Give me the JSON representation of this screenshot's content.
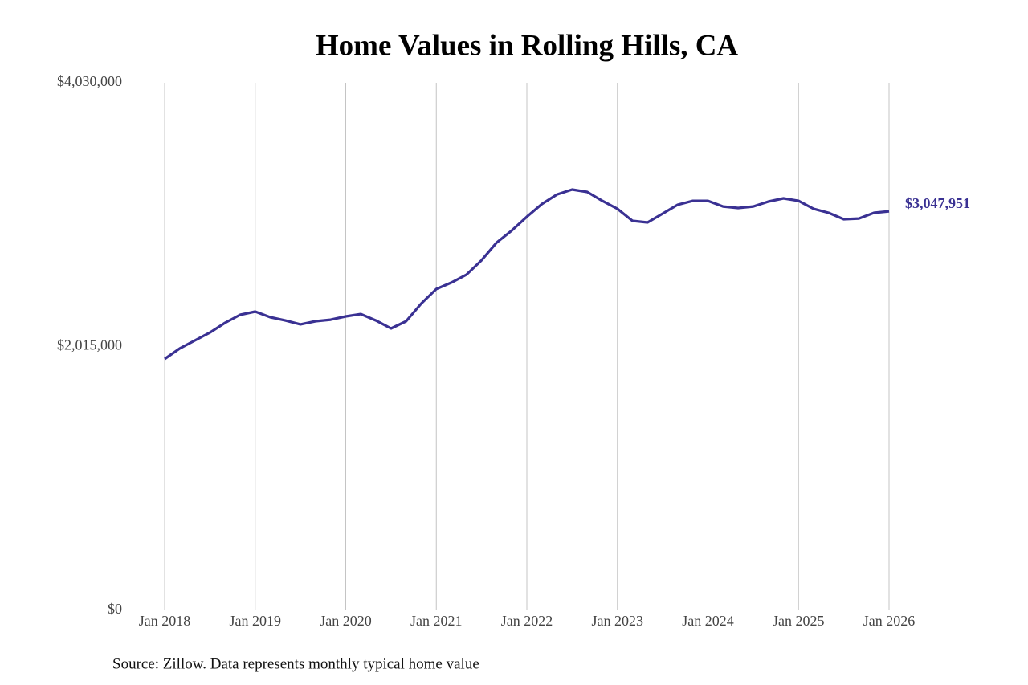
{
  "chart_data": {
    "type": "line",
    "title": "Home Values in Rolling Hills, CA",
    "source": "Source: Zillow. Data represents monthly typical home value",
    "x": [
      "2018-01",
      "2018-03",
      "2018-05",
      "2018-07",
      "2018-09",
      "2018-11",
      "2019-01",
      "2019-03",
      "2019-05",
      "2019-07",
      "2019-09",
      "2019-11",
      "2020-01",
      "2020-03",
      "2020-05",
      "2020-07",
      "2020-09",
      "2020-11",
      "2021-01",
      "2021-03",
      "2021-05",
      "2021-07",
      "2021-09",
      "2021-11",
      "2022-01",
      "2022-03",
      "2022-05",
      "2022-07",
      "2022-09",
      "2022-11",
      "2023-01",
      "2023-03",
      "2023-05",
      "2023-07",
      "2023-09",
      "2023-11",
      "2024-01",
      "2024-03",
      "2024-05",
      "2024-07",
      "2024-09",
      "2024-11",
      "2025-01",
      "2025-03",
      "2025-05",
      "2025-07",
      "2025-09",
      "2025-11",
      "2026-01"
    ],
    "series": [
      {
        "name": "Home value",
        "color": "#3a3193",
        "values": [
          1920000,
          2000000,
          2061000,
          2122000,
          2196000,
          2257000,
          2282000,
          2239000,
          2214000,
          2184000,
          2208000,
          2220000,
          2245000,
          2263000,
          2214000,
          2153000,
          2208000,
          2343000,
          2454000,
          2503000,
          2564000,
          2674000,
          2809000,
          2901000,
          3006000,
          3104000,
          3177000,
          3214000,
          3196000,
          3128000,
          3067000,
          2975000,
          2963000,
          3030000,
          3098000,
          3128000,
          3128000,
          3085000,
          3073000,
          3085000,
          3122000,
          3147000,
          3128000,
          3067000,
          3036000,
          2987000,
          2993000,
          3036000,
          3047951
        ],
        "value_labels": [
          null,
          null,
          null,
          null,
          null,
          null,
          null,
          null,
          null,
          null,
          null,
          null,
          null,
          null,
          null,
          null,
          null,
          null,
          null,
          null,
          null,
          null,
          null,
          null,
          null,
          null,
          null,
          null,
          null,
          null,
          null,
          null,
          null,
          null,
          null,
          null,
          null,
          null,
          null,
          null,
          null,
          null,
          null,
          null,
          null,
          null,
          null,
          null,
          "$3,047,951"
        ]
      }
    ],
    "xlim": [
      "2018-01",
      "2026-01"
    ],
    "xticks": [
      {
        "value": "2018-01",
        "label": "Jan 2018"
      },
      {
        "value": "2019-01",
        "label": "Jan 2019"
      },
      {
        "value": "2020-01",
        "label": "Jan 2020"
      },
      {
        "value": "2021-01",
        "label": "Jan 2021"
      },
      {
        "value": "2022-01",
        "label": "Jan 2022"
      },
      {
        "value": "2023-01",
        "label": "Jan 2023"
      },
      {
        "value": "2024-01",
        "label": "Jan 2024"
      },
      {
        "value": "2025-01",
        "label": "Jan 2025"
      },
      {
        "value": "2026-01",
        "label": "Jan 2026"
      }
    ],
    "ylim": [
      0,
      4030000
    ],
    "yticks": [
      {
        "value": 0,
        "label": "$0"
      },
      {
        "value": 2015000,
        "label": "$2,015,000"
      },
      {
        "value": 4030000,
        "label": "$4,030,000"
      }
    ],
    "grid": "x"
  }
}
